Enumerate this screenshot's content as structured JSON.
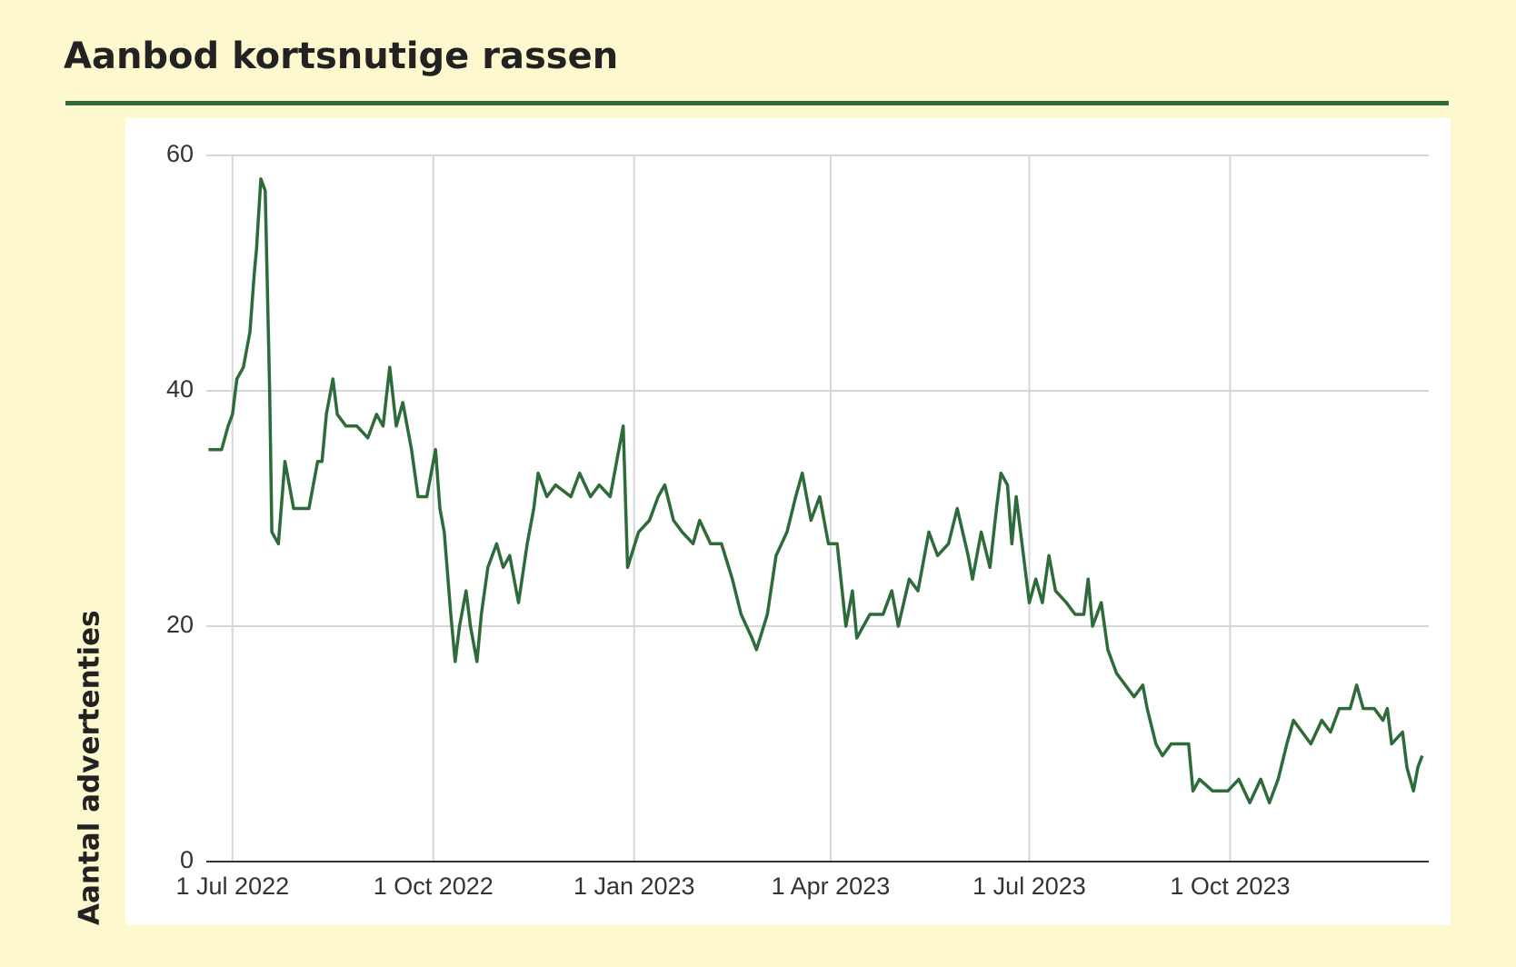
{
  "chart_data": {
    "type": "line",
    "title": "Aanbod kortsnutige rassen",
    "y_label": "Aantal advertenties",
    "x": [
      "2022-06-20",
      "2022-06-26",
      "2022-06-29",
      "2022-07-01",
      "2022-07-03",
      "2022-07-06",
      "2022-07-09",
      "2022-07-11",
      "2022-07-12",
      "2022-07-14",
      "2022-07-16",
      "2022-07-18",
      "2022-07-19",
      "2022-07-22",
      "2022-07-25",
      "2022-07-26",
      "2022-07-29",
      "2022-08-05",
      "2022-08-09",
      "2022-08-11",
      "2022-08-13",
      "2022-08-16",
      "2022-08-18",
      "2022-08-22",
      "2022-08-27",
      "2022-09-01",
      "2022-09-05",
      "2022-09-08",
      "2022-09-11",
      "2022-09-14",
      "2022-09-17",
      "2022-09-21",
      "2022-09-24",
      "2022-09-28",
      "2022-10-02",
      "2022-10-04",
      "2022-10-06",
      "2022-10-09",
      "2022-10-11",
      "2022-10-13",
      "2022-10-16",
      "2022-10-18",
      "2022-10-21",
      "2022-10-23",
      "2022-10-26",
      "2022-10-30",
      "2022-11-02",
      "2022-11-05",
      "2022-11-09",
      "2022-11-13",
      "2022-11-16",
      "2022-11-18",
      "2022-11-22",
      "2022-11-26",
      "2022-12-03",
      "2022-12-07",
      "2022-12-12",
      "2022-12-16",
      "2022-12-21",
      "2022-12-24",
      "2022-12-27",
      "2022-12-29",
      "2023-01-03",
      "2023-01-08",
      "2023-01-12",
      "2023-01-15",
      "2023-01-19",
      "2023-01-23",
      "2023-01-28",
      "2023-01-31",
      "2023-02-05",
      "2023-02-10",
      "2023-02-15",
      "2023-02-19",
      "2023-02-24",
      "2023-02-26",
      "2023-03-03",
      "2023-03-07",
      "2023-03-12",
      "2023-03-16",
      "2023-03-19",
      "2023-03-23",
      "2023-03-27",
      "2023-03-31",
      "2023-04-04",
      "2023-04-08",
      "2023-04-11",
      "2023-04-13",
      "2023-04-19",
      "2023-04-25",
      "2023-04-29",
      "2023-05-02",
      "2023-05-07",
      "2023-05-11",
      "2023-05-16",
      "2023-05-20",
      "2023-05-25",
      "2023-05-29",
      "2023-06-03",
      "2023-06-05",
      "2023-06-09",
      "2023-06-13",
      "2023-06-16",
      "2023-06-18",
      "2023-06-21",
      "2023-06-23",
      "2023-06-25",
      "2023-06-29",
      "2023-07-01",
      "2023-07-04",
      "2023-07-07",
      "2023-07-10",
      "2023-07-13",
      "2023-07-18",
      "2023-07-22",
      "2023-07-26",
      "2023-07-28",
      "2023-07-30",
      "2023-08-03",
      "2023-08-06",
      "2023-08-10",
      "2023-08-14",
      "2023-08-18",
      "2023-08-22",
      "2023-08-24",
      "2023-08-28",
      "2023-08-31",
      "2023-09-04",
      "2023-09-08",
      "2023-09-12",
      "2023-09-14",
      "2023-09-17",
      "2023-09-23",
      "2023-09-30",
      "2023-10-05",
      "2023-10-10",
      "2023-10-15",
      "2023-10-19",
      "2023-10-23",
      "2023-10-27",
      "2023-10-30",
      "2023-11-03",
      "2023-11-07",
      "2023-11-12",
      "2023-11-16",
      "2023-11-20",
      "2023-11-25",
      "2023-11-28",
      "2023-12-01",
      "2023-12-06",
      "2023-12-10",
      "2023-12-12",
      "2023-12-14",
      "2023-12-19",
      "2023-12-21",
      "2023-12-24",
      "2023-12-26",
      "2023-12-28"
    ],
    "values": [
      35,
      35,
      37,
      38,
      41,
      42,
      45,
      50,
      52,
      58,
      57,
      40,
      28,
      27,
      34,
      33,
      30,
      30,
      34,
      34,
      38,
      41,
      38,
      37,
      37,
      36,
      38,
      37,
      42,
      37,
      39,
      35,
      31,
      31,
      35,
      30,
      28,
      21,
      17,
      20,
      23,
      20,
      17,
      21,
      25,
      27,
      25,
      26,
      22,
      27,
      30,
      33,
      31,
      32,
      31,
      33,
      31,
      32,
      31,
      34,
      37,
      25,
      28,
      29,
      31,
      32,
      29,
      28,
      27,
      29,
      27,
      27,
      24,
      21,
      19,
      18,
      21,
      26,
      28,
      31,
      33,
      29,
      31,
      27,
      27,
      20,
      23,
      19,
      21,
      21,
      23,
      20,
      24,
      23,
      28,
      26,
      27,
      30,
      26,
      24,
      28,
      25,
      30,
      33,
      32,
      27,
      31,
      25,
      22,
      24,
      22,
      26,
      23,
      22,
      21,
      21,
      24,
      20,
      22,
      18,
      16,
      15,
      14,
      15,
      13,
      10,
      9,
      10,
      10,
      10,
      6,
      7,
      6,
      6,
      7,
      5,
      7,
      5,
      7,
      10,
      12,
      11,
      10,
      12,
      11,
      13,
      13,
      15,
      13,
      13,
      12,
      13,
      10,
      11,
      8,
      6,
      8,
      9
    ],
    "color": "#2e6b3a",
    "xlim": [
      "2022-06-19",
      "2023-12-31"
    ],
    "xticks": [
      {
        "value": "2022-07-01",
        "label": "1 Jul 2022"
      },
      {
        "value": "2022-10-01",
        "label": "1 Oct 2022"
      },
      {
        "value": "2023-01-01",
        "label": "1 Jan 2023"
      },
      {
        "value": "2023-04-01",
        "label": "1 Apr 2023"
      },
      {
        "value": "2023-07-01",
        "label": "1 Jul 2023"
      },
      {
        "value": "2023-10-01",
        "label": "1 Oct 2023"
      }
    ],
    "ylim": [
      0,
      60
    ],
    "yticks": [
      0,
      20,
      40,
      60
    ],
    "grid": true
  }
}
